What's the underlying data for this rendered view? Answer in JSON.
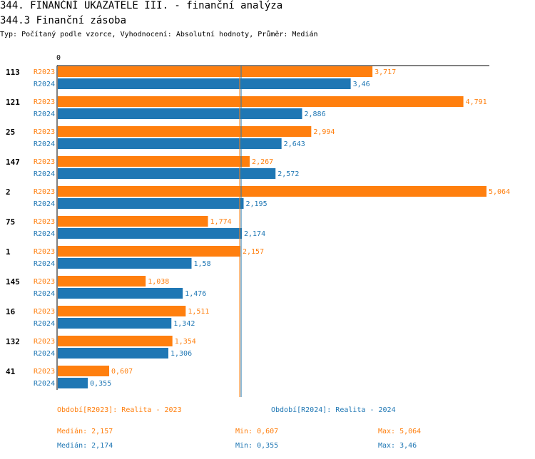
{
  "header": {
    "title": "344. FINANČNÍ UKAZATELE III. - finanční analýza",
    "subtitle": "344.3 Finanční zásoba",
    "type_line": "Typ: Počítaný podle vzorce, Vyhodnocení: Absolutní hodnoty, Průměr: Medián"
  },
  "colors": {
    "r2023": "#ff7f0e",
    "r2024": "#1f77b4"
  },
  "chart_data": {
    "type": "bar",
    "orientation": "horizontal",
    "title": "344.3 Finanční zásoba",
    "xlim": [
      0,
      5.064
    ],
    "axis_origin_label": "0",
    "categories": [
      "113",
      "121",
      "25",
      "147",
      "2",
      "75",
      "1",
      "145",
      "16",
      "132",
      "41"
    ],
    "series": [
      {
        "name": "R2023",
        "values": [
          3.717,
          4.791,
          2.994,
          2.267,
          5.064,
          1.774,
          2.157,
          1.038,
          1.511,
          1.354,
          0.607
        ],
        "labels": [
          "3,717",
          "4,791",
          "2,994",
          "2,267",
          "5,064",
          "1,774",
          "2,157",
          "1,038",
          "1,511",
          "1,354",
          "0,607"
        ]
      },
      {
        "name": "R2024",
        "values": [
          3.46,
          2.886,
          2.643,
          2.572,
          2.195,
          2.174,
          1.58,
          1.476,
          1.342,
          1.306,
          0.355
        ],
        "labels": [
          "3,46",
          "2,886",
          "2,643",
          "2,572",
          "2,195",
          "2,174",
          "1,58",
          "1,476",
          "1,342",
          "1,306",
          "0,355"
        ]
      }
    ],
    "median_lines": {
      "R2023": 2.157,
      "R2024": 2.174
    }
  },
  "summary": {
    "period_2023": "Období[R2023]: Realita - 2023",
    "period_2024": "Období[R2024]: Realita - 2024",
    "median_2023": "Medián: 2,157",
    "min_2023": "Min: 0,607",
    "max_2023": "Max: 5,064",
    "median_2024": "Medián: 2,174",
    "min_2024": "Min: 0,355",
    "max_2024": "Max: 3,46"
  }
}
